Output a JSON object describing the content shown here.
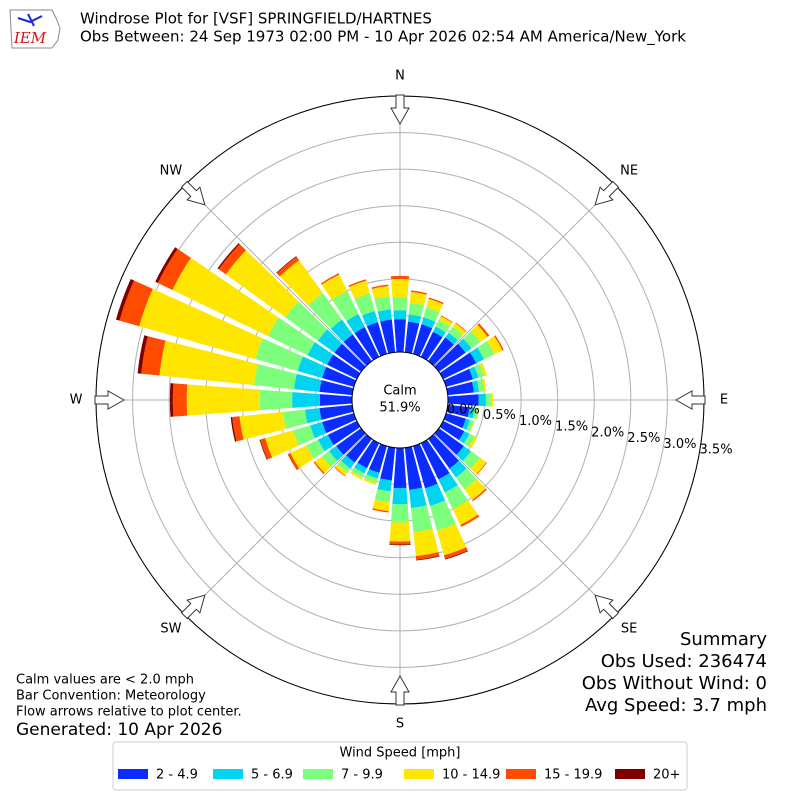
{
  "chart_data": {
    "type": "windrose",
    "title": "Windrose Plot for [VSF] SPRINGFIELD/HARTNES",
    "subtitle": "Obs Between: 24 Sep 1973 02:00 PM - 10 Apr 2026 02:54 AM America/New_York",
    "logo": "IEM",
    "calm_label": "Calm",
    "calm_value": 51.9,
    "calm_value_label": "51.9%",
    "theta": [
      0,
      10,
      20,
      30,
      40,
      50,
      60,
      70,
      80,
      90,
      100,
      110,
      120,
      130,
      140,
      150,
      160,
      170,
      180,
      190,
      200,
      210,
      220,
      230,
      240,
      250,
      260,
      270,
      280,
      290,
      300,
      310,
      320,
      330,
      340,
      350
    ],
    "thetaticks": [
      {
        "value": 0,
        "label": "N"
      },
      {
        "value": 45,
        "label": "NE"
      },
      {
        "value": 90,
        "label": "E"
      },
      {
        "value": 135,
        "label": "SE"
      },
      {
        "value": 180,
        "label": "S"
      },
      {
        "value": 225,
        "label": "SW"
      },
      {
        "value": 270,
        "label": "W"
      },
      {
        "value": 315,
        "label": "NW"
      }
    ],
    "rlim": [
      0,
      3.5
    ],
    "rticks": [
      {
        "value": 0,
        "label": "0.0%"
      },
      {
        "value": 0.5,
        "label": "0.5%"
      },
      {
        "value": 1,
        "label": "1.0%"
      },
      {
        "value": 1.5,
        "label": "1.5%"
      },
      {
        "value": 2,
        "label": "2.0%"
      },
      {
        "value": 2.5,
        "label": "2.5%"
      },
      {
        "value": 3,
        "label": "3.0%"
      },
      {
        "value": 3.5,
        "label": "3.5%"
      }
    ],
    "grid": true,
    "legend_title": "Wind Speed [mph]",
    "legend": "bottom",
    "series": [
      {
        "name": "2 - 4.9",
        "color": "#0a2cff",
        "values": [
          0.45,
          0.42,
          0.42,
          0.38,
          0.4,
          0.45,
          0.5,
          0.38,
          0.36,
          0.42,
          0.3,
          0.28,
          0.32,
          0.42,
          0.5,
          0.55,
          0.6,
          0.58,
          0.55,
          0.45,
          0.38,
          0.38,
          0.4,
          0.42,
          0.44,
          0.45,
          0.45,
          0.44,
          0.45,
          0.45,
          0.45,
          0.45,
          0.45,
          0.45,
          0.45,
          0.45
        ]
      },
      {
        "name": "5 - 6.9",
        "color": "#00d4f0",
        "values": [
          0.12,
          0.1,
          0.1,
          0.08,
          0.08,
          0.1,
          0.12,
          0.08,
          0.07,
          0.1,
          0.07,
          0.06,
          0.08,
          0.12,
          0.15,
          0.2,
          0.25,
          0.25,
          0.22,
          0.15,
          0.08,
          0.08,
          0.1,
          0.12,
          0.15,
          0.17,
          0.2,
          0.38,
          0.35,
          0.35,
          0.3,
          0.28,
          0.25,
          0.2,
          0.16,
          0.14
        ]
      },
      {
        "name": "7 - 9.9",
        "color": "#7dff7d",
        "values": [
          0.18,
          0.16,
          0.14,
          0.1,
          0.1,
          0.15,
          0.16,
          0.08,
          0.07,
          0.07,
          0.05,
          0.05,
          0.08,
          0.15,
          0.2,
          0.25,
          0.35,
          0.33,
          0.25,
          0.15,
          0.06,
          0.06,
          0.07,
          0.12,
          0.18,
          0.24,
          0.3,
          0.44,
          0.55,
          0.6,
          0.6,
          0.55,
          0.45,
          0.35,
          0.25,
          0.18
        ]
      },
      {
        "name": "10 - 14.9",
        "color": "#ffe600",
        "values": [
          0.25,
          0.15,
          0.12,
          0.06,
          0.06,
          0.12,
          0.12,
          0.04,
          0.03,
          0.03,
          0.01,
          0.01,
          0.04,
          0.11,
          0.18,
          0.24,
          0.35,
          0.33,
          0.26,
          0.12,
          0.03,
          0.03,
          0.05,
          0.12,
          0.24,
          0.4,
          0.6,
          1.0,
          1.3,
          1.65,
          1.45,
          1.0,
          0.55,
          0.25,
          0.18,
          0.14
        ]
      },
      {
        "name": "15 - 19.9",
        "color": "#ff4a00",
        "values": [
          0.04,
          0.02,
          0.02,
          0.01,
          0.01,
          0.03,
          0.02,
          0,
          0,
          0,
          0,
          0,
          0,
          0.01,
          0.02,
          0.03,
          0.05,
          0.05,
          0.04,
          0.02,
          0,
          0,
          0.01,
          0.02,
          0.04,
          0.07,
          0.1,
          0.19,
          0.25,
          0.28,
          0.22,
          0.12,
          0.06,
          0.02,
          0.02,
          0.02
        ]
      },
      {
        "name": "20+",
        "color": "#800000",
        "values": [
          0,
          0,
          0,
          0,
          0,
          0,
          0,
          0,
          0,
          0,
          0,
          0,
          0,
          0,
          0,
          0,
          0.01,
          0.01,
          0.01,
          0,
          0,
          0,
          0,
          0,
          0,
          0.01,
          0.02,
          0.04,
          0.05,
          0.05,
          0.04,
          0.02,
          0.01,
          0,
          0,
          0
        ]
      }
    ],
    "notes": [
      "Calm values are < 2.0 mph",
      "Bar Convention: Meteorology",
      "Flow arrows relative to plot center."
    ],
    "generated": "Generated: 10 Apr 2026",
    "summary": [
      "Summary",
      "Obs Used: 236474",
      "Obs Without Wind: 0",
      "Avg Speed: 3.7 mph"
    ]
  }
}
